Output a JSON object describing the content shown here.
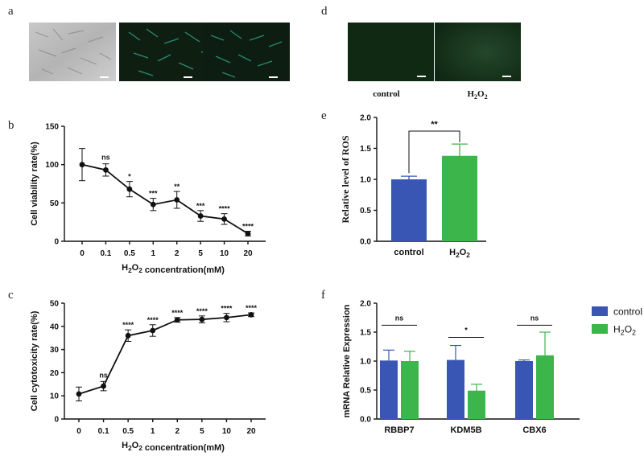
{
  "colors": {
    "control": "#3a56b4",
    "h2o2": "#3cb54a",
    "line": "#111111"
  },
  "panel_labels": {
    "a": "a",
    "b": "b",
    "c": "c",
    "d": "d",
    "e": "e",
    "f": "f"
  },
  "micrographs_a": [
    "brightfield-cells",
    "fluorescence-cells-1",
    "fluorescence-cells-2"
  ],
  "micrographs_d": {
    "labels": [
      "control",
      "H2O2"
    ]
  },
  "chart_data": [
    {
      "id": "b",
      "type": "line",
      "categories": [
        "0",
        "0.1",
        "0.5",
        "1",
        "2",
        "5",
        "10",
        "20"
      ],
      "values": [
        100,
        93,
        68,
        48,
        54,
        33,
        29,
        10
      ],
      "errors": [
        21,
        8,
        10,
        8,
        11,
        7,
        7,
        3
      ],
      "significance": [
        "",
        "ns",
        "*",
        "***",
        "**",
        "***",
        "****",
        "****"
      ],
      "ylabel": "Cell viability rate(%)",
      "xlabel": "H2O2 concentration(mM)",
      "ylim": [
        0,
        150
      ],
      "yticks": [
        0,
        50,
        100,
        150
      ]
    },
    {
      "id": "c",
      "type": "line",
      "categories": [
        "0",
        "0.1",
        "0.5",
        "1",
        "2",
        "5",
        "10",
        "20"
      ],
      "values": [
        10.8,
        14.2,
        36,
        38.2,
        42.8,
        43,
        43.8,
        45
      ],
      "errors": [
        3,
        2,
        2.5,
        2.5,
        1,
        1.5,
        1.8,
        0.8
      ],
      "significance": [
        "",
        "ns",
        "****",
        "****",
        "****",
        "****",
        "****",
        "****"
      ],
      "ylabel": "Cell cytotoxicity rate(%)",
      "xlabel": "H2O2 concentration(mM)",
      "ylim": [
        0,
        50
      ],
      "yticks": [
        0,
        10,
        20,
        30,
        40,
        50
      ]
    },
    {
      "id": "e",
      "type": "bar",
      "categories": [
        "control",
        "H2O2"
      ],
      "values": [
        1.0,
        1.38
      ],
      "errors": [
        0.05,
        0.19
      ],
      "significance": "**",
      "ylabel": "Relative level of ROS",
      "ylim": [
        0,
        2.0
      ],
      "yticks": [
        "0.0",
        "0.5",
        "1.0",
        "1.5",
        "2.0"
      ]
    },
    {
      "id": "f",
      "type": "bar",
      "categories": [
        "RBBP7",
        "KDM5B",
        "CBX6"
      ],
      "series": [
        {
          "name": "control",
          "values": [
            1.01,
            1.02,
            1.0
          ],
          "errors": [
            0.18,
            0.25,
            0.02
          ]
        },
        {
          "name": "H2O2",
          "values": [
            1.0,
            0.49,
            1.1
          ],
          "errors": [
            0.17,
            0.11,
            0.4
          ]
        }
      ],
      "significance": [
        "ns",
        "*",
        "ns"
      ],
      "ylabel": "mRNA Relative Expression",
      "ylim": [
        0,
        2.0
      ],
      "yticks": [
        "0.0",
        "0.5",
        "1.0",
        "1.5",
        "2.0"
      ],
      "legend": "top-right"
    }
  ]
}
